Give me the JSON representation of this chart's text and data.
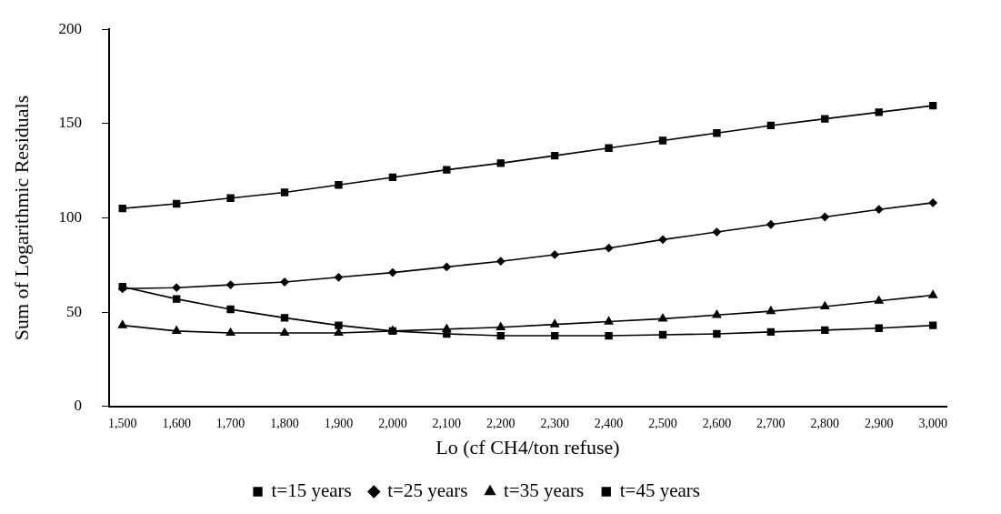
{
  "chart_data": {
    "type": "line",
    "xlabel": "Lo (cf CH4/ton refuse)",
    "ylabel": "Sum of Logarithmic Residuals",
    "x": [
      1500,
      1600,
      1700,
      1800,
      1900,
      2000,
      2100,
      2200,
      2300,
      2400,
      2500,
      2600,
      2700,
      2800,
      2900,
      3000
    ],
    "xlim": [
      1475,
      3025
    ],
    "xticks": [
      {
        "value": 1500,
        "label": "1,500"
      },
      {
        "value": 1600,
        "label": "1,600"
      },
      {
        "value": 1700,
        "label": "1,700"
      },
      {
        "value": 1800,
        "label": "1,800"
      },
      {
        "value": 1900,
        "label": "1,900"
      },
      {
        "value": 2000,
        "label": "2,000"
      },
      {
        "value": 2100,
        "label": "2,100"
      },
      {
        "value": 2200,
        "label": "2,200"
      },
      {
        "value": 2300,
        "label": "2,300"
      },
      {
        "value": 2400,
        "label": "2,400"
      },
      {
        "value": 2500,
        "label": "2,500"
      },
      {
        "value": 2600,
        "label": "2,600"
      },
      {
        "value": 2700,
        "label": "2,700"
      },
      {
        "value": 2800,
        "label": "2,800"
      },
      {
        "value": 2900,
        "label": "2,900"
      },
      {
        "value": 3000,
        "label": "3,000"
      }
    ],
    "ylim": [
      0,
      200
    ],
    "yticks": [
      0,
      50,
      100,
      150,
      200
    ],
    "grid": false,
    "legend": "bottom",
    "line_style": "solid",
    "series": [
      {
        "name": "t=15 years",
        "color": "#000000",
        "marker": "square",
        "values": [
          105,
          107.5,
          110.5,
          113.5,
          117.5,
          121.5,
          125.5,
          129,
          133,
          137,
          141,
          145,
          149,
          152.5,
          156,
          159.5
        ]
      },
      {
        "name": "t=25 years",
        "color": "#000000",
        "marker": "diamond",
        "values": [
          62.5,
          63,
          64.5,
          66,
          68.5,
          71,
          74,
          77,
          80.5,
          84,
          88.5,
          92.5,
          96.5,
          100.5,
          104.5,
          108
        ]
      },
      {
        "name": "t=35 years",
        "color": "#000000",
        "marker": "triangle",
        "values": [
          43,
          40,
          39,
          39,
          39,
          40,
          41,
          42,
          43.5,
          45,
          46.5,
          48.5,
          50.5,
          53,
          56,
          59
        ]
      },
      {
        "name": "t=45 years",
        "color": "#000000",
        "marker": "square",
        "values": [
          63.5,
          57,
          51.5,
          47,
          43,
          40,
          38.5,
          37.5,
          37.5,
          37.5,
          38,
          38.5,
          39.5,
          40.5,
          41.5,
          43
        ]
      }
    ]
  }
}
